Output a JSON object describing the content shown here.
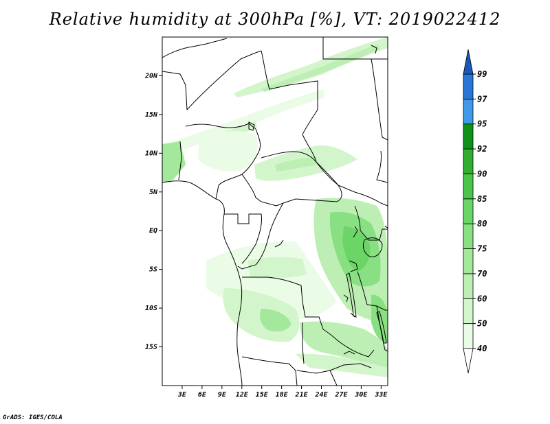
{
  "title": "Relative humidity at 300hPa [%], VT: 2019022412",
  "footer": "GrADS: IGES/COLA",
  "map": {
    "lon_range": [
      0,
      34
    ],
    "lat_range": [
      -20,
      25
    ],
    "lat_ticks": [
      {
        "value": 20,
        "label": "20N"
      },
      {
        "value": 15,
        "label": "15N"
      },
      {
        "value": 10,
        "label": "10N"
      },
      {
        "value": 5,
        "label": "5N"
      },
      {
        "value": 0,
        "label": "EQ"
      },
      {
        "value": -5,
        "label": "5S"
      },
      {
        "value": -10,
        "label": "10S"
      },
      {
        "value": -15,
        "label": "15S"
      }
    ],
    "lon_ticks": [
      {
        "value": 3,
        "label": "3E"
      },
      {
        "value": 6,
        "label": "6E"
      },
      {
        "value": 9,
        "label": "9E"
      },
      {
        "value": 12,
        "label": "12E"
      },
      {
        "value": 15,
        "label": "15E"
      },
      {
        "value": 18,
        "label": "18E"
      },
      {
        "value": 21,
        "label": "21E"
      },
      {
        "value": 24,
        "label": "24E"
      },
      {
        "value": 27,
        "label": "27E"
      },
      {
        "value": 30,
        "label": "30E"
      },
      {
        "value": 33,
        "label": "33E"
      }
    ]
  },
  "colorbar": {
    "levels": [
      "40",
      "50",
      "60",
      "70",
      "75",
      "80",
      "85",
      "90",
      "92",
      "95",
      "97",
      "99"
    ],
    "colors": [
      "#ffffff",
      "#eafbe6",
      "#d3f5cc",
      "#bdefb4",
      "#a4e89b",
      "#88e082",
      "#6cd567",
      "#4cc44a",
      "#2fae32",
      "#0f9218",
      "#3f98e8",
      "#2a76d6",
      "#1a58b8"
    ]
  }
}
